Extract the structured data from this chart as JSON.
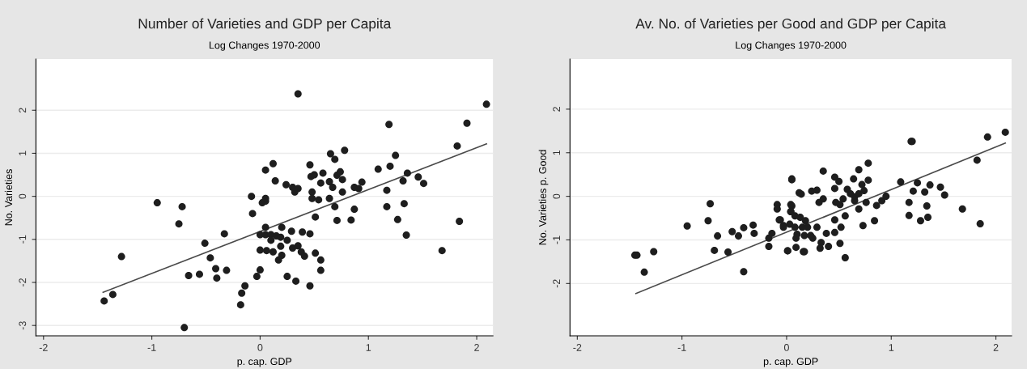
{
  "chart_data": [
    {
      "type": "scatter",
      "title": "Number of Varieties and GDP per Capita",
      "subtitle": "Log Changes 1970-2000",
      "xlabel": "p. cap. GDP",
      "ylabel": "No. Varieties",
      "xlim": [
        -2.07,
        2.15
      ],
      "ylim": [
        -3.24,
        3.19
      ],
      "xticks": [
        -2,
        -1,
        0,
        1,
        2
      ],
      "yticks": [
        -3,
        -2,
        -1,
        0,
        1,
        2
      ],
      "grid": "y",
      "series": [
        {
          "marker": "circle",
          "color": "#1e1e1e",
          "x": [
            -1.44,
            -1.36,
            -1.28,
            -0.95,
            -0.72,
            -0.75,
            -0.08,
            -0.07,
            -0.33,
            -0.51,
            -0.46,
            -0.41,
            -0.31,
            -0.4,
            -0.66,
            -0.56,
            -0.14,
            -0.17,
            -0.18,
            -0.03,
            -0.7,
            0.0,
            0.0,
            0.0,
            0.02,
            0.35,
            2.09,
            1.19,
            1.91,
            1.82,
            0.65,
            0.69,
            0.78,
            1.25,
            0.12,
            0.05,
            0.46,
            1.09,
            1.2,
            0.14,
            0.24,
            0.3,
            0.35,
            0.32,
            0.47,
            0.5,
            0.58,
            0.56,
            0.48,
            0.48,
            0.54,
            0.64,
            0.67,
            0.71,
            0.74,
            0.76,
            0.76,
            0.87,
            0.91,
            0.94,
            0.64,
            0.69,
            0.51,
            0.71,
            0.84,
            0.87,
            1.17,
            1.17,
            1.32,
            1.36,
            1.46,
            1.51,
            1.33,
            1.27,
            1.35,
            1.68,
            1.84,
            0.05,
            0.05,
            0.05,
            0.2,
            0.29,
            0.05,
            0.1,
            0.15,
            0.19,
            0.1,
            0.25,
            0.39,
            0.46,
            0.06,
            0.12,
            0.19,
            0.3,
            0.35,
            0.38,
            0.41,
            0.2,
            0.17,
            0.51,
            0.56,
            0.56,
            0.25,
            0.33,
            0.46
          ],
          "values": [
            -2.43,
            -2.28,
            -1.4,
            -0.15,
            -0.24,
            -0.64,
            0.0,
            -0.4,
            -0.87,
            -1.09,
            -1.43,
            -1.68,
            -1.72,
            -1.9,
            -1.84,
            -1.81,
            -2.08,
            -2.25,
            -2.52,
            -1.86,
            -3.05,
            -1.71,
            -1.25,
            -0.89,
            -0.15,
            2.38,
            2.14,
            1.67,
            1.7,
            1.17,
            0.99,
            0.86,
            1.07,
            0.95,
            0.76,
            0.61,
            0.73,
            0.63,
            0.7,
            0.36,
            0.27,
            0.21,
            0.18,
            0.1,
            0.46,
            0.5,
            0.54,
            0.31,
            0.1,
            -0.05,
            -0.08,
            0.34,
            0.21,
            0.49,
            0.57,
            0.39,
            0.1,
            0.21,
            0.18,
            0.33,
            -0.05,
            -0.24,
            -0.48,
            -0.56,
            -0.55,
            -0.3,
            0.14,
            -0.24,
            0.36,
            0.54,
            0.45,
            0.3,
            -0.17,
            -0.54,
            -0.9,
            -1.26,
            -0.58,
            -0.11,
            -0.05,
            -0.72,
            -0.72,
            -0.81,
            -0.89,
            -0.89,
            -0.92,
            -0.95,
            -1.02,
            -1.02,
            -0.83,
            -0.87,
            -1.26,
            -1.29,
            -1.16,
            -1.2,
            -1.15,
            -1.29,
            -1.39,
            -1.37,
            -1.48,
            -1.32,
            -1.48,
            -1.72,
            -1.86,
            -1.97,
            -2.08
          ]
        },
        {
          "type": "line",
          "color": "#4a4a4a",
          "x": [
            -1.45,
            2.09
          ],
          "values": [
            -2.23,
            1.22
          ]
        }
      ]
    },
    {
      "type": "scatter",
      "title": "Av. No. of Varieties per Good and GDP per Capita",
      "subtitle": "Log Changes 1970-2000",
      "xlabel": "p. cap. GDP",
      "ylabel": "No. Varieties p. Good",
      "xlim": [
        -2.07,
        2.15
      ],
      "ylim": [
        -3.2,
        3.15
      ],
      "xticks": [
        -2,
        -1,
        0,
        1,
        2
      ],
      "yticks": [
        -2,
        -1,
        0,
        1,
        2
      ],
      "grid": "y",
      "series": [
        {
          "marker": "circle",
          "color": "#1e1e1e",
          "x": [
            -1.45,
            -1.43,
            -1.27,
            -1.36,
            -0.95,
            -0.73,
            -0.75,
            -0.66,
            -0.69,
            -0.56,
            -0.52,
            -0.46,
            -0.41,
            -0.32,
            -0.31,
            -0.41,
            -0.17,
            -0.17,
            -0.14,
            0.01,
            0.05,
            -0.09,
            -0.09,
            -0.07,
            -0.03,
            0.05,
            0.04,
            2.09,
            1.92,
            1.82,
            1.19,
            1.2,
            0.78,
            0.69,
            0.35,
            0.05,
            0.46,
            0.5,
            0.64,
            0.78,
            0.72,
            0.12,
            0.14,
            0.24,
            0.29,
            0.46,
            0.58,
            0.61,
            0.65,
            0.69,
            0.74,
            0.35,
            0.31,
            0.47,
            0.54,
            0.51,
            0.65,
            0.69,
            0.76,
            0.86,
            0.91,
            0.95,
            1.09,
            1.25,
            1.37,
            1.47,
            1.51,
            1.21,
            1.32,
            1.17,
            1.34,
            1.17,
            1.28,
            1.35,
            1.68,
            1.85,
            0.73,
            0.84,
            0.56,
            0.46,
            0.52,
            0.46,
            0.38,
            0.29,
            0.04,
            0.04,
            0.08,
            0.13,
            0.18,
            0.03,
            0.08,
            0.15,
            0.2,
            -0.06,
            -0.03,
            0.1,
            0.17,
            0.23,
            0.25,
            0.09,
            0.33,
            0.51,
            0.32,
            0.4,
            0.01,
            0.09,
            0.16,
            0.17,
            0.56
          ],
          "values": [
            -1.35,
            -1.35,
            -1.27,
            -1.74,
            -0.68,
            -0.17,
            -0.56,
            -0.91,
            -1.24,
            -1.28,
            -0.81,
            -0.91,
            -0.72,
            -0.66,
            -0.85,
            -1.73,
            -0.96,
            -1.15,
            -0.85,
            -1.25,
            0.4,
            -0.19,
            -0.29,
            -0.54,
            -0.67,
            -0.22,
            -0.35,
            1.47,
            1.36,
            0.83,
            1.26,
            1.26,
            0.76,
            0.61,
            0.58,
            0.38,
            0.44,
            0.34,
            0.4,
            0.37,
            0.27,
            0.08,
            0.05,
            0.12,
            0.14,
            0.18,
            0.16,
            0.06,
            -0.01,
            0.06,
            0.13,
            -0.06,
            -0.14,
            -0.14,
            -0.06,
            -0.19,
            -0.1,
            -0.29,
            -0.14,
            -0.21,
            -0.1,
            0.0,
            0.33,
            0.31,
            0.26,
            0.21,
            0.03,
            0.12,
            0.1,
            -0.14,
            -0.22,
            -0.44,
            -0.56,
            -0.48,
            -0.29,
            -0.63,
            -0.67,
            -0.56,
            -0.45,
            -0.54,
            -0.71,
            -0.83,
            -0.85,
            -0.71,
            -0.19,
            -0.35,
            -0.45,
            -0.48,
            -0.56,
            -0.64,
            -0.71,
            -0.71,
            -0.71,
            -0.54,
            -0.71,
            -0.87,
            -0.9,
            -0.9,
            -0.96,
            -0.96,
            -1.06,
            -1.08,
            -1.19,
            -1.15,
            -1.25,
            -1.17,
            -1.27,
            -1.27,
            -1.41
          ]
        },
        {
          "type": "line",
          "color": "#4a4a4a",
          "x": [
            -1.44,
            2.09
          ],
          "values": [
            -2.23,
            1.22
          ]
        }
      ]
    }
  ]
}
